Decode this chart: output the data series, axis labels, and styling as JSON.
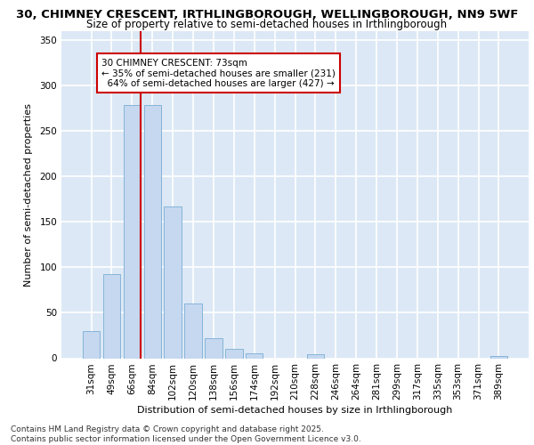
{
  "title_line1": "30, CHIMNEY CRESCENT, IRTHLINGBOROUGH, WELLINGBOROUGH, NN9 5WF",
  "title_line2": "Size of property relative to semi-detached houses in Irthlingborough",
  "xlabel": "Distribution of semi-detached houses by size in Irthlingborough",
  "ylabel": "Number of semi-detached properties",
  "footer": "Contains HM Land Registry data © Crown copyright and database right 2025.\nContains public sector information licensed under the Open Government Licence v3.0.",
  "categories": [
    "31sqm",
    "49sqm",
    "66sqm",
    "84sqm",
    "102sqm",
    "120sqm",
    "138sqm",
    "156sqm",
    "174sqm",
    "192sqm",
    "210sqm",
    "228sqm",
    "246sqm",
    "264sqm",
    "281sqm",
    "299sqm",
    "317sqm",
    "335sqm",
    "353sqm",
    "371sqm",
    "389sqm"
  ],
  "values": [
    30,
    93,
    279,
    279,
    167,
    60,
    22,
    10,
    5,
    0,
    0,
    4,
    0,
    0,
    0,
    0,
    0,
    0,
    0,
    0,
    2
  ],
  "bar_color": "#c5d8f0",
  "bar_edge_color": "#7aadd4",
  "background_color": "#dce8f5",
  "grid_color": "#ffffff",
  "ylim": [
    0,
    360
  ],
  "yticks": [
    0,
    50,
    100,
    150,
    200,
    250,
    300,
    350
  ],
  "property_label": "30 CHIMNEY CRESCENT: 73sqm",
  "pct_smaller": 35,
  "pct_smaller_count": 231,
  "pct_larger": 64,
  "pct_larger_count": 427,
  "annotation_box_color": "#ffffff",
  "annotation_box_edge": "#cc0000",
  "red_line_color": "#cc0000",
  "red_line_x": 2.42,
  "title_fontsize": 9.5,
  "subtitle_fontsize": 8.5,
  "axis_label_fontsize": 8,
  "tick_fontsize": 7.5,
  "annotation_fontsize": 7.5,
  "footer_fontsize": 6.5
}
